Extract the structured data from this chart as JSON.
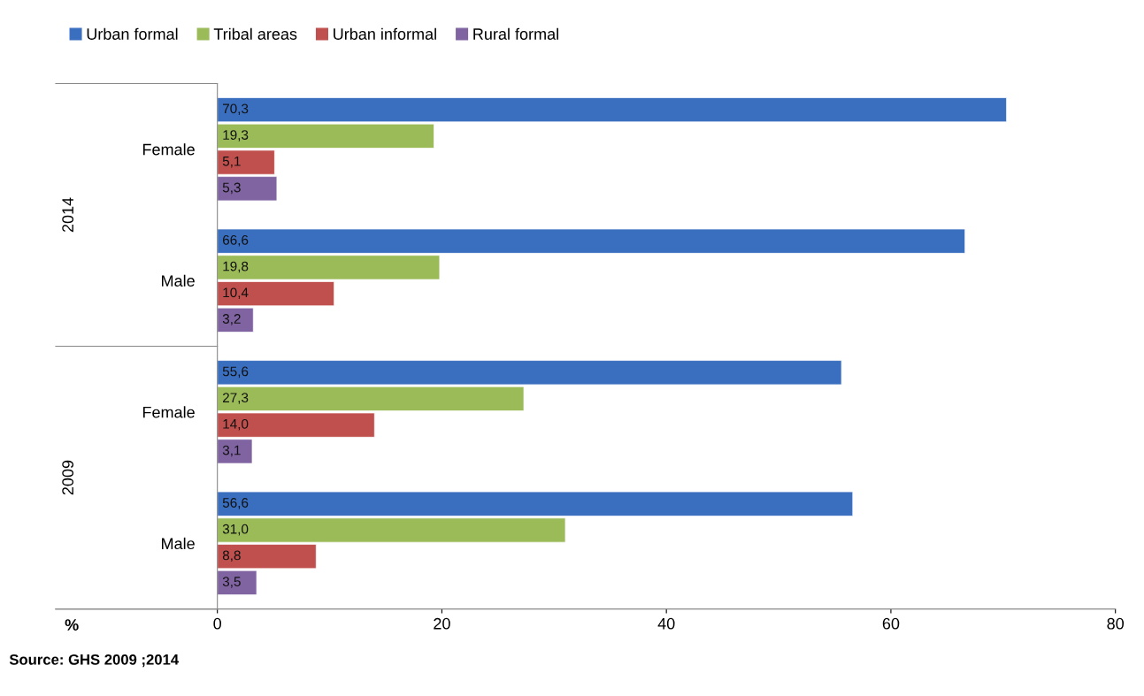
{
  "chart_data": {
    "type": "bar",
    "orientation": "horizontal",
    "categories": [
      "Female",
      "Male",
      "Female",
      "Male"
    ],
    "series": [
      {
        "name": "Urban formal",
        "color": "#3a6fc0",
        "values": [
          70.3,
          66.6,
          55.6,
          56.6
        ],
        "value_labels": [
          "70,3",
          "66,6",
          "55,6",
          "56,6"
        ]
      },
      {
        "name": "Tribal areas",
        "color": "#9bbb59",
        "values": [
          19.3,
          19.8,
          27.3,
          31.0
        ],
        "value_labels": [
          "19,3",
          "19,8",
          "27,3",
          "31,0"
        ]
      },
      {
        "name": "Urban informal",
        "color": "#c0504d",
        "values": [
          5.1,
          10.4,
          14.0,
          8.8
        ],
        "value_labels": [
          "5,1",
          "10,4",
          "14,0",
          "8,8"
        ]
      },
      {
        "name": "Rural formal",
        "color": "#8064a2",
        "values": [
          5.3,
          3.2,
          3.1,
          3.5
        ],
        "value_labels": [
          "5,3",
          "3,2",
          "3,1",
          "3,5"
        ]
      }
    ],
    "xlim": [
      0,
      80
    ],
    "xticks": [
      0,
      20,
      40,
      60,
      80
    ],
    "grid": false,
    "legend": "top left",
    "annotations": [
      "2014",
      "2009",
      "%",
      "Source: GHS 2009 ;2014"
    ]
  }
}
